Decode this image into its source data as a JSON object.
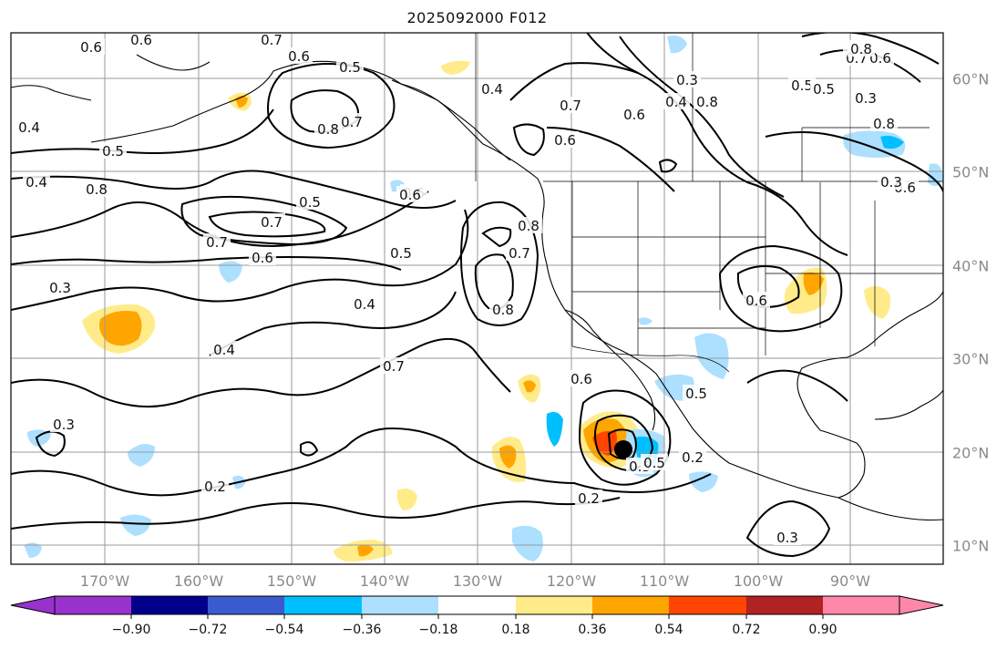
{
  "title": "2025092000 F012",
  "lon_labels": [
    "170°W",
    "160°W",
    "150°W",
    "140°W",
    "130°W",
    "120°W",
    "110°W",
    "100°W",
    "90°W"
  ],
  "lat_labels": [
    "60°N",
    "50°N",
    "40°N",
    "30°N",
    "20°N",
    "10°N"
  ],
  "contour_labels": [
    "0.6",
    "0.6",
    "0.7",
    "0.6",
    "0.5",
    "0.8",
    "0.7",
    "0.5",
    "0.4",
    "0.8",
    "0.7",
    "0.3",
    "0.4",
    "0.6",
    "0.5",
    "0.8",
    "0.6",
    "0.4",
    "0.7",
    "0.5",
    "0.4",
    "0.7",
    "0.5",
    "0.8",
    "0.6",
    "0.6",
    "0.8",
    "0.7",
    "0.6",
    "0.5",
    "0.8",
    "0.7",
    "0.6",
    "0.5",
    "0.7",
    "0.8",
    "0.6",
    "0.6",
    "0.3",
    "0.5",
    "0.6",
    "0.4",
    "0.3",
    "0.4",
    "0.3",
    "0.3",
    "0.5",
    "0.2",
    "0.2",
    "0.2",
    "0.3"
  ],
  "colorbar": {
    "colors": [
      "#9932CC",
      "#00008B",
      "#3A5BCF",
      "#00BFFF",
      "#ADDFFF",
      "#FFFFFF",
      "#FFEB8A",
      "#FFA500",
      "#FF4500",
      "#B22222",
      "#FF88AA"
    ],
    "tick_labels": [
      "−0.90",
      "−0.72",
      "−0.54",
      "−0.36",
      "−0.18",
      "0.18",
      "0.36",
      "0.54",
      "0.72",
      "0.90"
    ]
  }
}
